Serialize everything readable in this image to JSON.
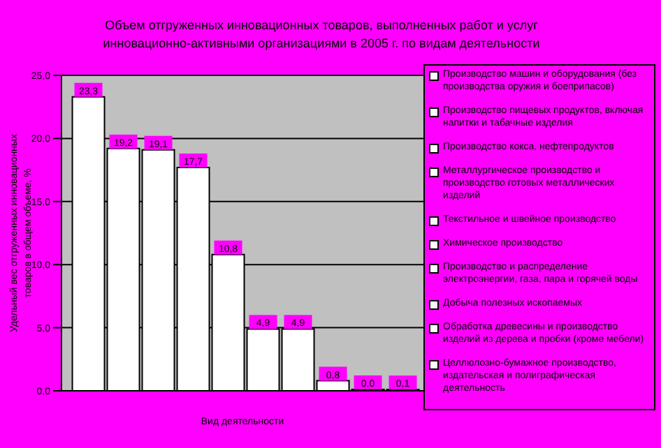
{
  "chart_data": {
    "type": "bar",
    "title": "Объем отгруженных инновационных товаров, выполненных работ и услуг инновационно-активными организациями в 2005 г. по видам деятельности",
    "xlabel": "Вид деятельности",
    "ylabel": "Удельный вес отгруженных инновационных товаров в общем объеме, %",
    "categories": [
      null
    ],
    "series": [
      {
        "name": "Производство машин и оборудования (без производства оружия и боеприпасов)",
        "color": "#ffffff",
        "values": [
          23.3
        ],
        "value_labels": [
          "23,3"
        ]
      },
      {
        "name": "Производство пищевых продуктов, включая напитки и табачные изделия",
        "color": "#ffffff",
        "values": [
          19.2
        ],
        "value_labels": [
          "19,2"
        ]
      },
      {
        "name": "Производство кокса, нефтепродуктов",
        "color": "#ffffff",
        "values": [
          19.1
        ],
        "value_labels": [
          "19,1"
        ]
      },
      {
        "name": "Металлургическое производство и производство готовых металлических изделий",
        "color": "#ffffff",
        "values": [
          17.7
        ],
        "value_labels": [
          "17,7"
        ]
      },
      {
        "name": "Текстильное и швейное производство",
        "color": "#ffffff",
        "values": [
          10.8
        ],
        "value_labels": [
          "10,8"
        ]
      },
      {
        "name": "Химическое производство",
        "color": "#ffffff",
        "values": [
          4.9
        ],
        "value_labels": [
          "4,9"
        ]
      },
      {
        "name": "Производство и распределение электроэнергии, газа, пара и горячей воды",
        "color": "#ffffff",
        "values": [
          4.9
        ],
        "value_labels": [
          "4,9"
        ]
      },
      {
        "name": "Добыча полезных ископаемых",
        "color": "#ffffff",
        "values": [
          0.8
        ],
        "value_labels": [
          "0,8"
        ]
      },
      {
        "name": "Обработка древесины и производство изделий из дерева и пробки (кроме мебели)",
        "color": "#ffffff",
        "values": [
          0.0
        ],
        "value_labels": [
          "0,0"
        ]
      },
      {
        "name": "Целлюлозно-бумажное производство, издательская и полиграфическая деятельность",
        "color": "#ffffff",
        "values": [
          0.1
        ],
        "value_labels": [
          "0,1"
        ]
      }
    ],
    "ylim": [
      0,
      25
    ],
    "yticks": [
      {
        "value": 0,
        "label": "0,0"
      },
      {
        "value": 5,
        "label": "5,0"
      },
      {
        "value": 10,
        "label": "10,0"
      },
      {
        "value": 15,
        "label": "15,0"
      },
      {
        "value": 20,
        "label": "20,0"
      },
      {
        "value": 25,
        "label": "25,0"
      }
    ],
    "grid": "y",
    "legend": "right"
  }
}
